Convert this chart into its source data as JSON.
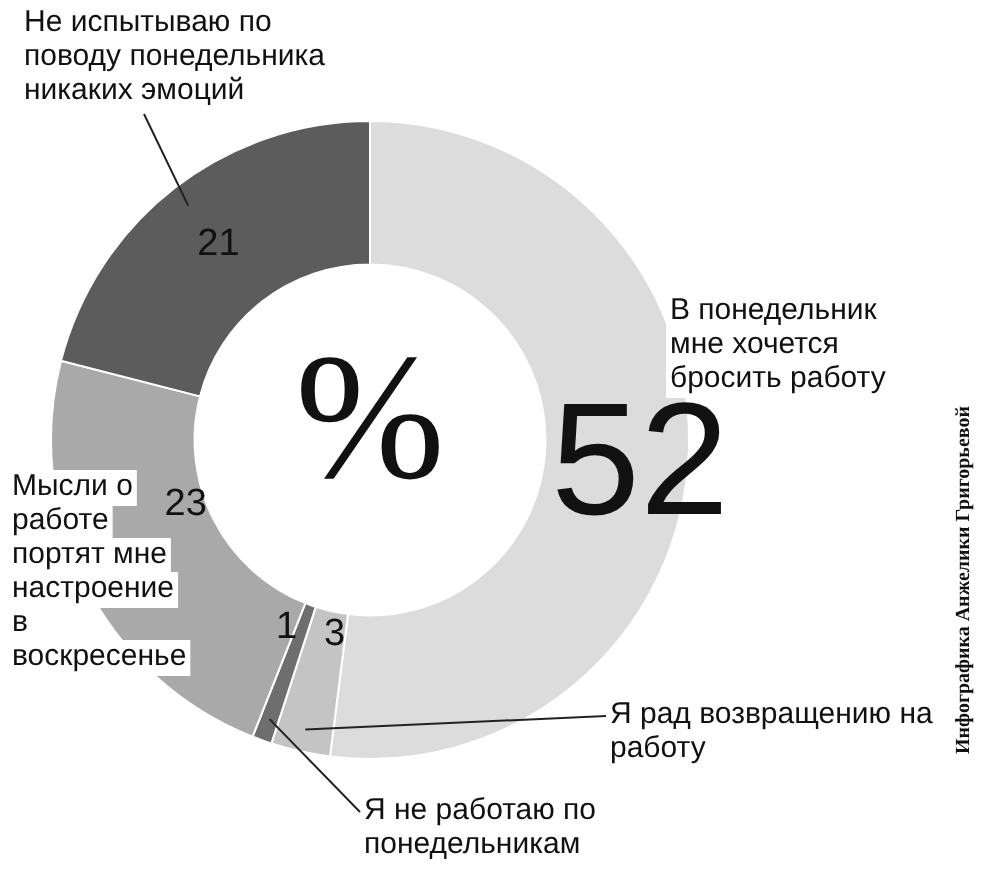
{
  "chart_data": {
    "type": "donut",
    "categories": [
      "В понедельник мне хочется бросить работу",
      "Я рад возвращению на работу",
      "Я не работаю по понедельникам",
      "Мысли о работе портят мне настроение в воскресенье",
      "Не испытываю по поводу понедельника никаких эмоций"
    ],
    "values": [
      52,
      3,
      1,
      23,
      21
    ],
    "colors": [
      "#dcdcdc",
      "#c4c4c4",
      "#6e6e6e",
      "#a9a9a9",
      "#5c5c5c"
    ],
    "data_labels": true,
    "legend": false,
    "annotations": [
      "%",
      "Инфографика Анжелики Григорьевой"
    ]
  }
}
